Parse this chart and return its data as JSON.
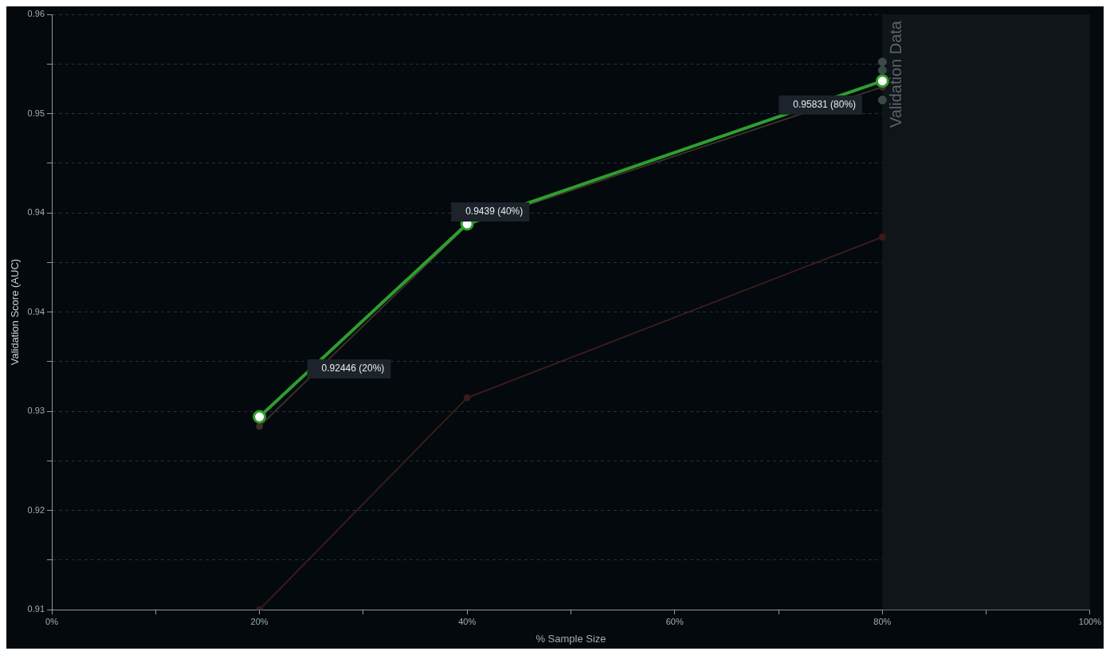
{
  "chart_data": {
    "type": "line",
    "xlabel": "% Sample Size",
    "ylabel": "Validation Score (AUC)",
    "xlim": [
      0,
      100
    ],
    "xticks": [
      {
        "value": 0,
        "label": "0%"
      },
      {
        "value": 10,
        "label": null
      },
      {
        "value": 20,
        "label": "20%"
      },
      {
        "value": 30,
        "label": null
      },
      {
        "value": 40,
        "label": "40%"
      },
      {
        "value": 50,
        "label": null
      },
      {
        "value": 60,
        "label": "60%"
      },
      {
        "value": 70,
        "label": null
      },
      {
        "value": 80,
        "label": "80%"
      },
      {
        "value": 90,
        "label": null
      },
      {
        "value": 100,
        "label": "100%"
      }
    ],
    "ylim": [
      0.91,
      0.96
    ],
    "yticks": [
      {
        "value": 0.91,
        "label": "0.91"
      },
      {
        "value": 0.91417,
        "label": null
      },
      {
        "value": 0.91833,
        "label": "0.92"
      },
      {
        "value": 0.9225,
        "label": null
      },
      {
        "value": 0.92667,
        "label": "0.93"
      },
      {
        "value": 0.93083,
        "label": null
      },
      {
        "value": 0.935,
        "label": "0.94"
      },
      {
        "value": 0.93917,
        "label": null
      },
      {
        "value": 0.94333,
        "label": "0.94"
      },
      {
        "value": 0.9475,
        "label": null
      },
      {
        "value": 0.95167,
        "label": "0.95"
      },
      {
        "value": 0.95583,
        "label": null
      },
      {
        "value": 0.96,
        "label": "0.96"
      }
    ],
    "grid": "y",
    "legend": false,
    "marker": "circle",
    "x": [
      20,
      40,
      80
    ],
    "series": [
      {
        "type": "line",
        "color": "#3a1a1c",
        "values": [
          0.91,
          0.9278,
          0.9413
        ]
      },
      {
        "type": "line",
        "color": "#3a3027",
        "values": [
          0.9254,
          0.9423,
          0.9539
        ]
      },
      {
        "type": "scatter",
        "color": "#3c4a44",
        "values": [
          null,
          null,
          0.956
        ]
      },
      {
        "type": "scatter",
        "color": "#3c4a44",
        "values": [
          null,
          null,
          0.9553
        ]
      },
      {
        "type": "scatter",
        "color": "#3c4a44",
        "values": [
          null,
          null,
          0.9528
        ]
      },
      {
        "type": "line",
        "color": "#2e9e2e",
        "values": [
          0.9262,
          0.9424,
          0.9544
        ]
      }
    ],
    "bands": [
      {
        "axis": "x",
        "from": 80,
        "to": 100,
        "label": "Validation Data",
        "color": "#0f1519"
      }
    ],
    "annotations": [
      "0.92446 (20%)",
      "0.9439 (40%)",
      "0.95831 (80%)"
    ]
  }
}
